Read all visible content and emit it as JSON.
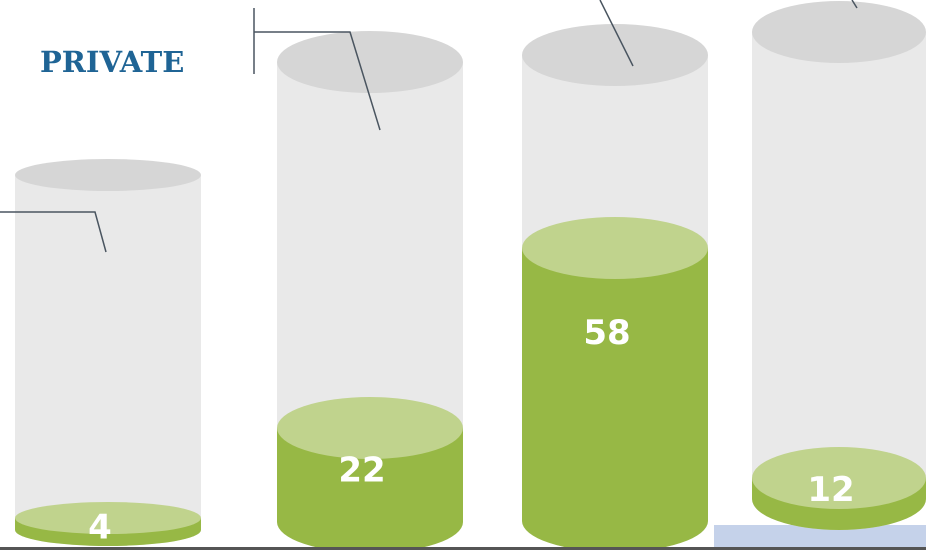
{
  "header": {
    "title": "PRIVATE"
  },
  "chart_data": {
    "type": "bar",
    "style": "3d-cylinder",
    "categories": [
      "",
      "",
      "",
      ""
    ],
    "values": [
      4,
      22,
      58,
      12
    ],
    "value_labels": [
      "4",
      "22",
      "58",
      "12"
    ],
    "ylim": [
      0,
      72
    ],
    "grid": false,
    "legend": "none"
  },
  "colors": {
    "title": "#1F6495",
    "fill_body": "#97B845",
    "fill_top": "#C0D38D",
    "glass_body": "#E9E9E9",
    "glass_top": "#D6D6D6",
    "leader_line": "#4A5560",
    "baseline": "#555555",
    "accent_panel": "#C5D2EA"
  }
}
